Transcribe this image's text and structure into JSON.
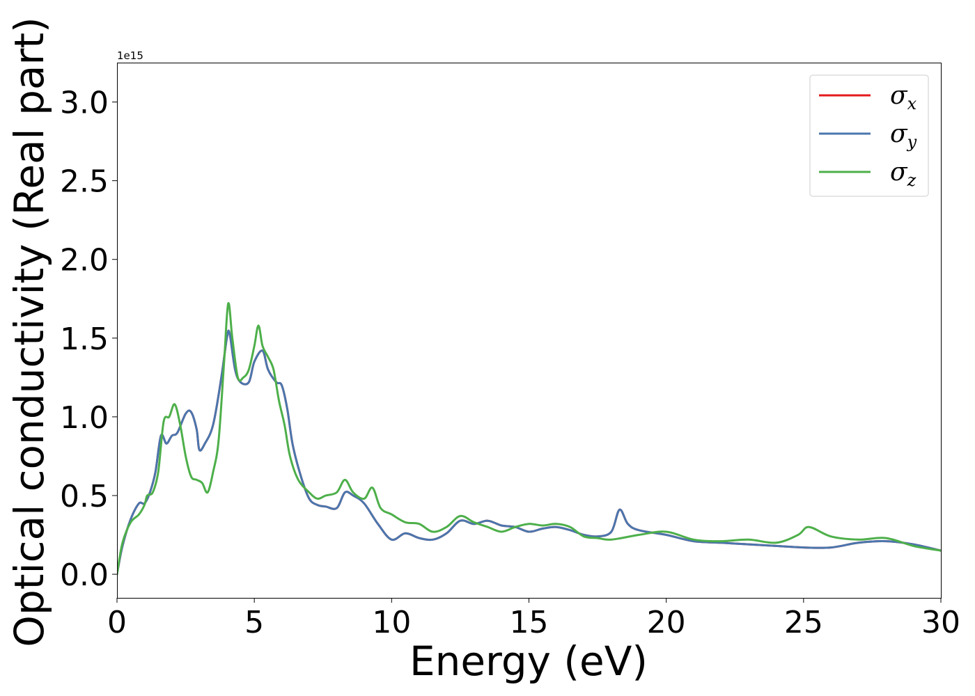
{
  "chart_data": {
    "type": "line",
    "xlabel": "Energy (eV)",
    "ylabel": "Optical conductivity (Real part)",
    "y_offset_label": "1e15",
    "xlim": [
      0,
      30
    ],
    "ylim": [
      -0.15,
      3.25
    ],
    "x_ticks": [
      0,
      5,
      10,
      15,
      20,
      25,
      30
    ],
    "x_tick_labels": [
      "0",
      "5",
      "10",
      "15",
      "20",
      "25",
      "30"
    ],
    "y_ticks": [
      0.0,
      0.5,
      1.0,
      1.5,
      2.0,
      2.5,
      3.0
    ],
    "y_tick_labels": [
      "0.0",
      "0.5",
      "1.0",
      "1.5",
      "2.0",
      "2.5",
      "3.0"
    ],
    "grid": false,
    "legend_position": "top-right",
    "series": [
      {
        "name": "σx",
        "symbol": "σ",
        "subscript": "x",
        "color": "#e41a1c",
        "x": [
          0,
          0.2,
          0.5,
          0.8,
          1.0,
          1.2,
          1.4,
          1.6,
          1.8,
          2.0,
          2.2,
          2.5,
          2.7,
          2.9,
          3.0,
          3.2,
          3.5,
          3.8,
          4.0,
          4.1,
          4.3,
          4.5,
          4.8,
          5.0,
          5.3,
          5.5,
          5.8,
          6.0,
          6.2,
          6.4,
          6.7,
          7.0,
          7.3,
          7.6,
          8.0,
          8.3,
          8.6,
          9.0,
          9.5,
          10.0,
          10.5,
          11.0,
          11.5,
          12.0,
          12.5,
          13.0,
          13.5,
          14.0,
          14.5,
          15.0,
          15.5,
          16.0,
          16.5,
          17.0,
          17.5,
          18.0,
          18.3,
          18.6,
          19.0,
          20.0,
          21.0,
          22.0,
          23.0,
          24.0,
          25.0,
          26.0,
          27.0,
          28.0,
          29.0,
          30.0
        ],
        "values": [
          0.0,
          0.18,
          0.35,
          0.45,
          0.45,
          0.52,
          0.65,
          0.88,
          0.83,
          0.88,
          0.9,
          1.02,
          1.03,
          0.92,
          0.79,
          0.83,
          0.95,
          1.25,
          1.5,
          1.53,
          1.3,
          1.22,
          1.22,
          1.35,
          1.42,
          1.3,
          1.22,
          1.2,
          1.05,
          0.82,
          0.62,
          0.48,
          0.44,
          0.43,
          0.42,
          0.52,
          0.5,
          0.45,
          0.32,
          0.22,
          0.26,
          0.23,
          0.22,
          0.26,
          0.34,
          0.32,
          0.34,
          0.31,
          0.3,
          0.27,
          0.29,
          0.3,
          0.28,
          0.25,
          0.24,
          0.27,
          0.41,
          0.32,
          0.28,
          0.25,
          0.21,
          0.2,
          0.19,
          0.18,
          0.17,
          0.17,
          0.2,
          0.21,
          0.19,
          0.15
        ]
      },
      {
        "name": "σy",
        "symbol": "σ",
        "subscript": "y",
        "color": "#4a76ad",
        "x": [
          0,
          0.2,
          0.5,
          0.8,
          1.0,
          1.2,
          1.4,
          1.6,
          1.8,
          2.0,
          2.2,
          2.5,
          2.7,
          2.9,
          3.0,
          3.2,
          3.5,
          3.8,
          4.0,
          4.1,
          4.3,
          4.5,
          4.8,
          5.0,
          5.3,
          5.5,
          5.8,
          6.0,
          6.2,
          6.4,
          6.7,
          7.0,
          7.3,
          7.6,
          8.0,
          8.3,
          8.6,
          9.0,
          9.5,
          10.0,
          10.5,
          11.0,
          11.5,
          12.0,
          12.5,
          13.0,
          13.5,
          14.0,
          14.5,
          15.0,
          15.5,
          16.0,
          16.5,
          17.0,
          17.5,
          18.0,
          18.3,
          18.6,
          19.0,
          20.0,
          21.0,
          22.0,
          23.0,
          24.0,
          25.0,
          26.0,
          27.0,
          28.0,
          29.0,
          30.0
        ],
        "values": [
          0.0,
          0.18,
          0.35,
          0.45,
          0.45,
          0.52,
          0.65,
          0.88,
          0.83,
          0.88,
          0.9,
          1.02,
          1.03,
          0.92,
          0.79,
          0.83,
          0.95,
          1.25,
          1.5,
          1.53,
          1.3,
          1.22,
          1.22,
          1.35,
          1.42,
          1.3,
          1.22,
          1.2,
          1.05,
          0.82,
          0.62,
          0.48,
          0.44,
          0.43,
          0.42,
          0.52,
          0.5,
          0.45,
          0.32,
          0.22,
          0.26,
          0.23,
          0.22,
          0.26,
          0.34,
          0.32,
          0.34,
          0.31,
          0.3,
          0.27,
          0.29,
          0.3,
          0.28,
          0.25,
          0.24,
          0.27,
          0.41,
          0.32,
          0.28,
          0.25,
          0.21,
          0.2,
          0.19,
          0.18,
          0.17,
          0.17,
          0.2,
          0.21,
          0.19,
          0.15
        ]
      },
      {
        "name": "σz",
        "symbol": "σ",
        "subscript": "z",
        "color": "#4daf4a",
        "x": [
          0,
          0.2,
          0.5,
          0.8,
          1.0,
          1.1,
          1.3,
          1.5,
          1.7,
          1.9,
          2.1,
          2.3,
          2.5,
          2.7,
          2.9,
          3.1,
          3.3,
          3.5,
          3.7,
          3.9,
          4.05,
          4.2,
          4.4,
          4.6,
          4.8,
          5.0,
          5.15,
          5.3,
          5.5,
          5.7,
          5.9,
          6.1,
          6.3,
          6.6,
          7.0,
          7.3,
          7.6,
          8.0,
          8.3,
          8.6,
          9.0,
          9.3,
          9.6,
          10.0,
          10.5,
          11.0,
          11.5,
          12.0,
          12.5,
          13.0,
          13.5,
          14.0,
          14.5,
          15.0,
          15.5,
          16.0,
          16.5,
          17.0,
          17.5,
          18.0,
          19.0,
          20.0,
          21.0,
          22.0,
          23.0,
          24.0,
          24.8,
          25.2,
          26.0,
          27.0,
          28.0,
          29.0,
          30.0
        ],
        "values": [
          0.0,
          0.2,
          0.33,
          0.38,
          0.44,
          0.5,
          0.52,
          0.65,
          0.97,
          1.0,
          1.08,
          0.95,
          0.75,
          0.62,
          0.6,
          0.58,
          0.52,
          0.65,
          0.85,
          1.35,
          1.72,
          1.5,
          1.25,
          1.25,
          1.3,
          1.45,
          1.58,
          1.45,
          1.38,
          1.3,
          1.1,
          0.95,
          0.75,
          0.6,
          0.52,
          0.48,
          0.5,
          0.52,
          0.6,
          0.52,
          0.48,
          0.55,
          0.42,
          0.38,
          0.33,
          0.32,
          0.27,
          0.3,
          0.37,
          0.33,
          0.3,
          0.27,
          0.3,
          0.32,
          0.31,
          0.32,
          0.3,
          0.24,
          0.23,
          0.22,
          0.25,
          0.27,
          0.22,
          0.21,
          0.22,
          0.2,
          0.25,
          0.3,
          0.24,
          0.22,
          0.23,
          0.18,
          0.15
        ]
      }
    ]
  }
}
